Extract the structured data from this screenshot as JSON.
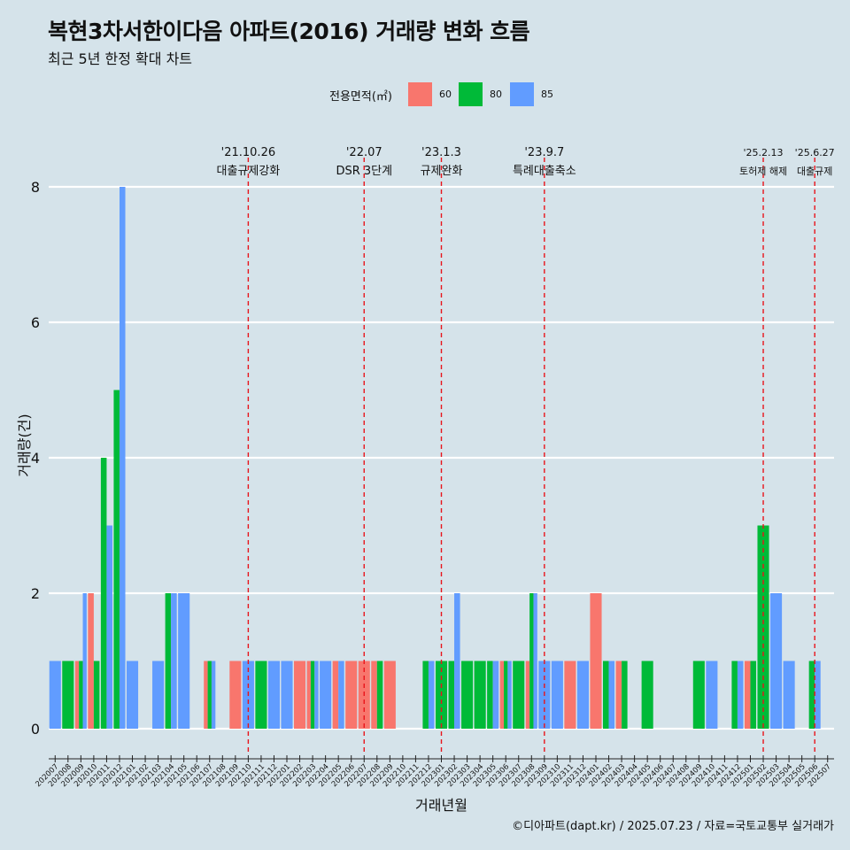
{
  "title": "복현3차서한이다음 아파트(2016) 거래량 변화 흐름",
  "subtitle": "최근 5년 한정 확대 차트",
  "caption": "©디아파트(dapt.kr) / 2025.07.23 / 자료=국토교통부 실거래가",
  "legend": {
    "title": "전용면적(㎡)",
    "items": [
      {
        "label": "60",
        "color": "#f8766d"
      },
      {
        "label": "80",
        "color": "#00ba38"
      },
      {
        "label": "85",
        "color": "#619cff"
      }
    ]
  },
  "chart_data": {
    "type": "bar",
    "xlabel": "거래년월",
    "ylabel": "거래량(건)",
    "ylim": [
      0,
      8
    ],
    "yticks": [
      0,
      2,
      4,
      6,
      8
    ],
    "grid": true,
    "legend_position": "top",
    "categories": [
      "202007",
      "202008",
      "202009",
      "202010",
      "202011",
      "202012",
      "202101",
      "202102",
      "202103",
      "202104",
      "202105",
      "202106",
      "202107",
      "202108",
      "202109",
      "202110",
      "202111",
      "202112",
      "202201",
      "202202",
      "202203",
      "202204",
      "202205",
      "202206",
      "202207",
      "202208",
      "202209",
      "202210",
      "202211",
      "202212",
      "202301",
      "202302",
      "202303",
      "202304",
      "202305",
      "202306",
      "202307",
      "202308",
      "202309",
      "202310",
      "202311",
      "202312",
      "202401",
      "202402",
      "202403",
      "202404",
      "202405",
      "202406",
      "202407",
      "202408",
      "202409",
      "202410",
      "202411",
      "202412",
      "202501",
      "202502",
      "202503",
      "202504",
      "202505",
      "202506",
      "202507"
    ],
    "series": [
      {
        "name": "60",
        "color": "#f8766d",
        "values": [
          0,
          0,
          1,
          2,
          0,
          0,
          0,
          0,
          0,
          0,
          0,
          0,
          1,
          0,
          1,
          0,
          0,
          0,
          0,
          1,
          1,
          0,
          1,
          1,
          1,
          1,
          1,
          0,
          0,
          0,
          0,
          0,
          0,
          0,
          0,
          1,
          0,
          1,
          0,
          0,
          1,
          0,
          2,
          0,
          1,
          0,
          0,
          0,
          0,
          0,
          0,
          0,
          0,
          0,
          1,
          0,
          0,
          0,
          0,
          0,
          0
        ]
      },
      {
        "name": "80",
        "color": "#00ba38",
        "values": [
          0,
          1,
          1,
          1,
          4,
          5,
          0,
          0,
          0,
          2,
          0,
          0,
          1,
          0,
          0,
          0,
          1,
          0,
          0,
          0,
          1,
          0,
          0,
          0,
          0,
          1,
          0,
          0,
          0,
          1,
          1,
          1,
          1,
          1,
          1,
          1,
          1,
          2,
          0,
          0,
          0,
          0,
          0,
          1,
          1,
          0,
          1,
          0,
          0,
          0,
          1,
          0,
          0,
          1,
          1,
          3,
          0,
          0,
          0,
          1,
          0
        ]
      },
      {
        "name": "85",
        "color": "#619cff",
        "values": [
          1,
          0,
          2,
          0,
          3,
          8,
          1,
          0,
          1,
          2,
          2,
          0,
          1,
          0,
          0,
          1,
          0,
          1,
          1,
          0,
          1,
          1,
          1,
          0,
          0,
          0,
          0,
          0,
          0,
          1,
          0,
          2,
          0,
          0,
          1,
          1,
          0,
          2,
          1,
          1,
          0,
          1,
          0,
          1,
          0,
          0,
          0,
          0,
          0,
          0,
          0,
          1,
          0,
          1,
          0,
          0,
          2,
          1,
          0,
          1,
          0
        ]
      }
    ],
    "events": [
      {
        "month": "202110",
        "date_label": "'21.10.26",
        "desc": "대출규제강화"
      },
      {
        "month": "202207",
        "date_label": "'22.07",
        "desc": "DSR 3단계"
      },
      {
        "month": "202301",
        "date_label": "'23.1.3",
        "desc": "규제완화"
      },
      {
        "month": "202309",
        "date_label": "'23.9.7",
        "desc": "특례대출축소"
      },
      {
        "month": "202502",
        "date_label": "'25.2.13",
        "desc": "토허제 해제"
      },
      {
        "month": "202506",
        "date_label": "'25.6.27",
        "desc": "대출규제"
      }
    ]
  }
}
